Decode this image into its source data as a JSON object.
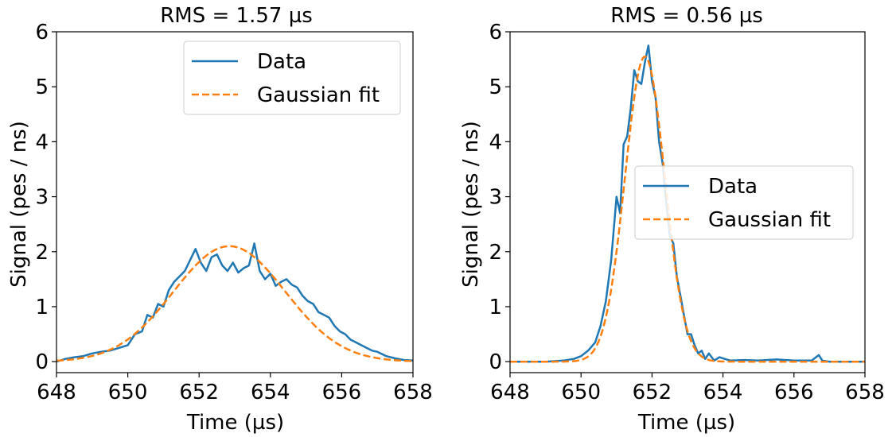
{
  "chart_data": [
    {
      "type": "line",
      "title": "RMS = 1.57 µs",
      "xlabel": "Time (µs)",
      "ylabel": "Signal (pes / ns)",
      "xlim": [
        648,
        658
      ],
      "ylim": [
        -0.2,
        6
      ],
      "xticks": [
        648,
        650,
        652,
        654,
        656,
        658
      ],
      "yticks": [
        0,
        1,
        2,
        3,
        4,
        5,
        6
      ],
      "legend_position": "upper-right",
      "series": [
        {
          "name": "Data",
          "color": "#1f77b4",
          "style": "solid",
          "x": [
            648.0,
            648.25,
            648.5,
            648.75,
            649.0,
            649.25,
            649.5,
            649.75,
            650.0,
            650.2,
            650.4,
            650.55,
            650.7,
            650.85,
            651.0,
            651.15,
            651.3,
            651.45,
            651.6,
            651.75,
            651.9,
            652.05,
            652.2,
            652.35,
            652.5,
            652.65,
            652.8,
            652.95,
            653.1,
            653.25,
            653.4,
            653.55,
            653.7,
            653.85,
            654.0,
            654.15,
            654.3,
            654.45,
            654.6,
            654.75,
            654.9,
            655.05,
            655.2,
            655.35,
            655.5,
            655.65,
            655.8,
            655.95,
            656.1,
            656.25,
            656.4,
            656.55,
            656.7,
            656.85,
            657.0,
            657.25,
            657.5,
            657.75,
            658.0
          ],
          "y": [
            0.0,
            0.05,
            0.08,
            0.1,
            0.15,
            0.18,
            0.2,
            0.25,
            0.3,
            0.5,
            0.55,
            0.85,
            0.8,
            1.05,
            1.0,
            1.3,
            1.45,
            1.55,
            1.65,
            1.85,
            2.05,
            1.8,
            1.65,
            1.9,
            1.95,
            1.75,
            1.65,
            1.8,
            1.62,
            1.7,
            1.75,
            2.15,
            1.65,
            1.5,
            1.6,
            1.38,
            1.45,
            1.5,
            1.4,
            1.35,
            1.2,
            1.1,
            1.05,
            0.9,
            0.85,
            0.8,
            0.65,
            0.55,
            0.5,
            0.4,
            0.35,
            0.3,
            0.25,
            0.2,
            0.18,
            0.1,
            0.06,
            0.03,
            0.02
          ]
        },
        {
          "name": "Gaussian fit",
          "color": "#ff7f0e",
          "style": "dashed",
          "amplitude": 2.1,
          "mean": 652.85,
          "sigma": 1.57
        }
      ]
    },
    {
      "type": "line",
      "title": "RMS = 0.56 µs",
      "xlabel": "Time (µs)",
      "ylabel": "Signal (pes / ns)",
      "xlim": [
        648,
        658
      ],
      "ylim": [
        -0.2,
        6
      ],
      "xticks": [
        648,
        650,
        652,
        654,
        656,
        658
      ],
      "yticks": [
        0,
        1,
        2,
        3,
        4,
        5,
        6
      ],
      "legend_position": "center-right",
      "series": [
        {
          "name": "Data",
          "color": "#1f77b4",
          "style": "solid",
          "x": [
            648.0,
            649.0,
            649.5,
            649.8,
            650.0,
            650.2,
            650.4,
            650.55,
            650.7,
            650.85,
            651.0,
            651.1,
            651.2,
            651.3,
            651.4,
            651.5,
            651.6,
            651.7,
            651.8,
            651.9,
            652.0,
            652.1,
            652.2,
            652.3,
            652.4,
            652.5,
            652.6,
            652.7,
            652.8,
            652.9,
            653.0,
            653.1,
            653.2,
            653.3,
            653.4,
            653.5,
            653.6,
            653.75,
            653.9,
            654.2,
            654.6,
            655.0,
            655.5,
            656.0,
            656.5,
            656.7,
            656.8,
            657.0,
            657.5,
            658.0
          ],
          "y": [
            0.0,
            0.0,
            0.02,
            0.05,
            0.1,
            0.2,
            0.35,
            0.65,
            1.1,
            1.85,
            3.0,
            2.7,
            3.95,
            4.1,
            4.6,
            5.3,
            5.1,
            5.05,
            5.45,
            5.75,
            5.1,
            4.8,
            4.0,
            3.6,
            2.9,
            2.3,
            2.15,
            1.55,
            1.2,
            0.85,
            0.5,
            0.5,
            0.3,
            0.15,
            0.2,
            0.05,
            0.15,
            0.02,
            0.08,
            0.02,
            0.03,
            0.02,
            0.04,
            0.02,
            0.02,
            0.12,
            0.02,
            0.0,
            0.0,
            0.0
          ]
        },
        {
          "name": "Gaussian fit",
          "color": "#ff7f0e",
          "style": "dashed",
          "amplitude": 5.55,
          "mean": 651.8,
          "sigma": 0.56
        }
      ]
    }
  ]
}
